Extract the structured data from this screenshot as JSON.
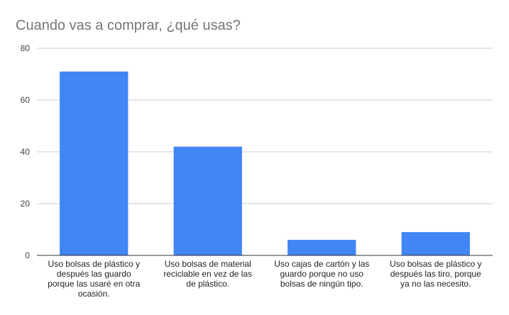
{
  "chart_data": {
    "type": "bar",
    "title": "Cuando vas a comprar, ¿qué usas?",
    "xlabel": "",
    "ylabel": "",
    "ylim": [
      0,
      80
    ],
    "yticks": [
      0,
      20,
      40,
      60,
      80
    ],
    "grid": true,
    "legend": "none",
    "bar_color": "#4285f4",
    "categories": [
      "Uso bolsas de plástico y después las guardo porque las usaré en otra ocasión.",
      "Uso bolsas de material reciclable en vez de las de plástico.",
      "Uso cajas de cartón y las guardo porque no uso bolsas de ningún tipo.",
      "Uso bolsas de plástico y después las tiro, porque ya no las necesito."
    ],
    "category_lines": [
      [
        "Uso bolsas de plástico y",
        "después las guardo",
        "porque las usaré en otra",
        "ocasión."
      ],
      [
        "Uso bolsas de material",
        "reciclable en vez de las",
        "de plástico."
      ],
      [
        "Uso cajas de cartón y las",
        "guardo porque no uso",
        "bolsas de ningún tipo."
      ],
      [
        "Uso bolsas de plástico y",
        "después las tiro, porque",
        "ya no las necesito."
      ]
    ],
    "values": [
      71,
      42,
      6,
      9
    ]
  }
}
